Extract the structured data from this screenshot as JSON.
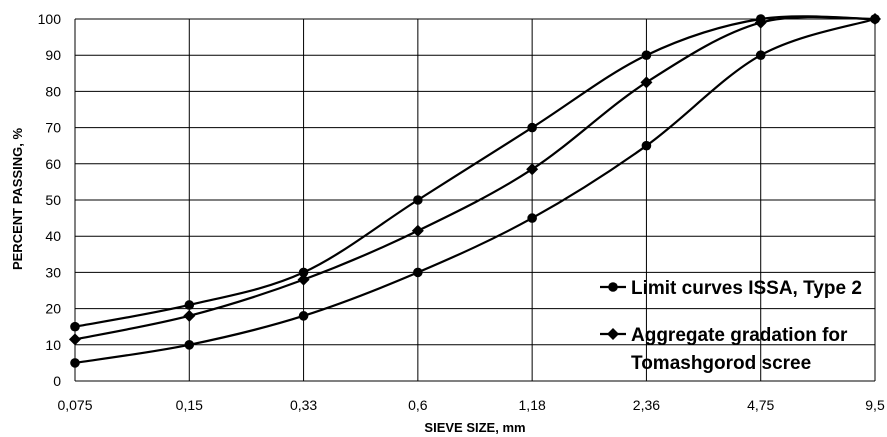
{
  "chart_data": {
    "type": "line",
    "xlabel": "SIEVE SIZE, mm",
    "ylabel": "PERCENT PASSING, %",
    "categories": [
      "0,075",
      "0,15",
      "0,33",
      "0,6",
      "1,18",
      "2,36",
      "4,75",
      "9,5"
    ],
    "ylim": [
      0,
      100
    ],
    "yticks": [
      0,
      10,
      20,
      30,
      40,
      50,
      60,
      70,
      80,
      90,
      100
    ],
    "grid": true,
    "legend_position": "bottom-right",
    "series": [
      {
        "name": "Limit curves ISSA, Type 2",
        "marker": "circle",
        "values": [
          15,
          21,
          30,
          50,
          70,
          90,
          100,
          100
        ],
        "upper_limit": true
      },
      {
        "name": "",
        "marker": "circle",
        "values": [
          5,
          10,
          18,
          30,
          45,
          65,
          90,
          100
        ],
        "lower_limit": true
      },
      {
        "name": "Aggregate gradation for Tomashgorod scree",
        "marker": "diamond",
        "values": [
          11.5,
          18,
          28,
          41.5,
          58.5,
          82.5,
          99,
          100
        ]
      }
    ],
    "legend": [
      {
        "marker": "circle",
        "lines": [
          "Limit curves ISSA, Type 2"
        ]
      },
      {
        "marker": "diamond",
        "lines": [
          "Aggregate gradation for",
          "Tomashgorod scree"
        ]
      }
    ]
  }
}
